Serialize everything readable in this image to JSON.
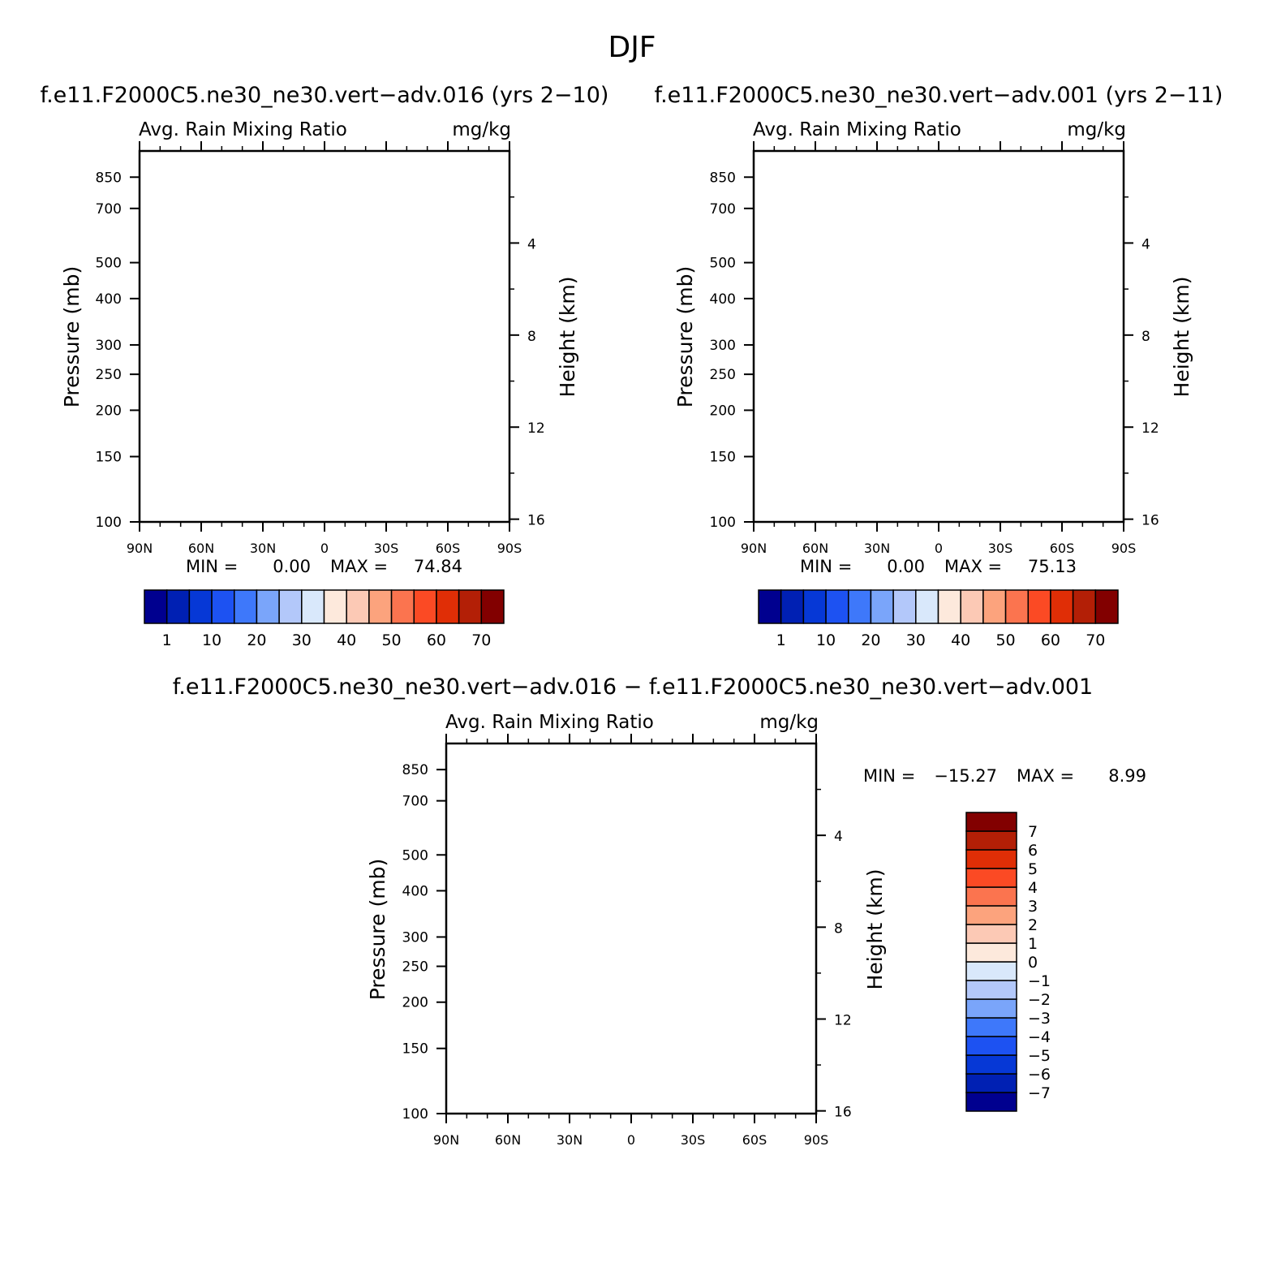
{
  "figure": {
    "title": "DJF"
  },
  "palettes": {
    "bluered": [
      "#00008f",
      "#0020b3",
      "#0638d6",
      "#1d52f2",
      "#3e78fa",
      "#7aa5fa",
      "#b3c8fa",
      "#d9e8fb",
      "#fde9dc",
      "#fcc9b5",
      "#fca37d",
      "#fb744f",
      "#fb4a24",
      "#e02e06",
      "#b31f06",
      "#820000"
    ]
  },
  "chart_data": [
    {
      "type": "heatmap",
      "case_title": "f.e11.F2000C5.ne30_ne30.vert−adv.016 (yrs 2−10)",
      "field_label": "Avg. Rain Mixing Ratio",
      "units_label": "mg/kg",
      "ylabel_left": "Pressure (mb)",
      "ylabel_right": "Height (km)",
      "x_ticks": [
        "90N",
        "60N",
        "30N",
        "0",
        "30S",
        "60S",
        "90S"
      ],
      "y_ticks_left": [
        "100",
        "150",
        "200",
        "250",
        "300",
        "400",
        "500",
        "700",
        "850"
      ],
      "y_ticks_right": [
        "16",
        "12",
        "8",
        "4"
      ],
      "min_label": "MIN =",
      "min_value": "0.00",
      "max_label": "MAX =",
      "max_value": "74.84",
      "colorbar_labels": [
        "1",
        "10",
        "20",
        "30",
        "40",
        "50",
        "60",
        "70"
      ],
      "levels": [
        1,
        5,
        10,
        15,
        20,
        25,
        30,
        35,
        40,
        45,
        50,
        55,
        60,
        65,
        70
      ],
      "max_numeric": 74.84
    },
    {
      "type": "heatmap",
      "case_title": "f.e11.F2000C5.ne30_ne30.vert−adv.001 (yrs 2−11)",
      "field_label": "Avg. Rain Mixing Ratio",
      "units_label": "mg/kg",
      "ylabel_left": "Pressure (mb)",
      "ylabel_right": "Height (km)",
      "x_ticks": [
        "90N",
        "60N",
        "30N",
        "0",
        "30S",
        "60S",
        "90S"
      ],
      "y_ticks_left": [
        "100",
        "150",
        "200",
        "250",
        "300",
        "400",
        "500",
        "700",
        "850"
      ],
      "y_ticks_right": [
        "16",
        "12",
        "8",
        "4"
      ],
      "min_label": "MIN =",
      "min_value": "0.00",
      "max_label": "MAX =",
      "max_value": "75.13",
      "colorbar_labels": [
        "1",
        "10",
        "20",
        "30",
        "40",
        "50",
        "60",
        "70"
      ],
      "levels": [
        1,
        5,
        10,
        15,
        20,
        25,
        30,
        35,
        40,
        45,
        50,
        55,
        60,
        65,
        70
      ],
      "max_numeric": 75.13
    },
    {
      "type": "heatmap",
      "case_title": "f.e11.F2000C5.ne30_ne30.vert−adv.016 − f.e11.F2000C5.ne30_ne30.vert−adv.001",
      "field_label": "Avg. Rain Mixing Ratio",
      "units_label": "mg/kg",
      "ylabel_left": "Pressure (mb)",
      "ylabel_right": "Height (km)",
      "x_ticks": [
        "90N",
        "60N",
        "30N",
        "0",
        "30S",
        "60S",
        "90S"
      ],
      "y_ticks_left": [
        "100",
        "150",
        "200",
        "250",
        "300",
        "400",
        "500",
        "700",
        "850"
      ],
      "y_ticks_right": [
        "16",
        "12",
        "8",
        "4"
      ],
      "min_label": "MIN =",
      "min_value": "−15.27",
      "max_label": "MAX =",
      "max_value": "8.99",
      "colorbar_labels": [
        "7",
        "6",
        "5",
        "4",
        "3",
        "2",
        "1",
        "0",
        "−1",
        "−2",
        "−3",
        "−4",
        "−5",
        "−6",
        "−7"
      ],
      "levels": [
        -7,
        -6,
        -5,
        -4,
        -3,
        -2,
        -1,
        0,
        1,
        2,
        3,
        4,
        5,
        6,
        7
      ],
      "min_numeric": -15.27,
      "max_numeric": 8.99
    }
  ]
}
